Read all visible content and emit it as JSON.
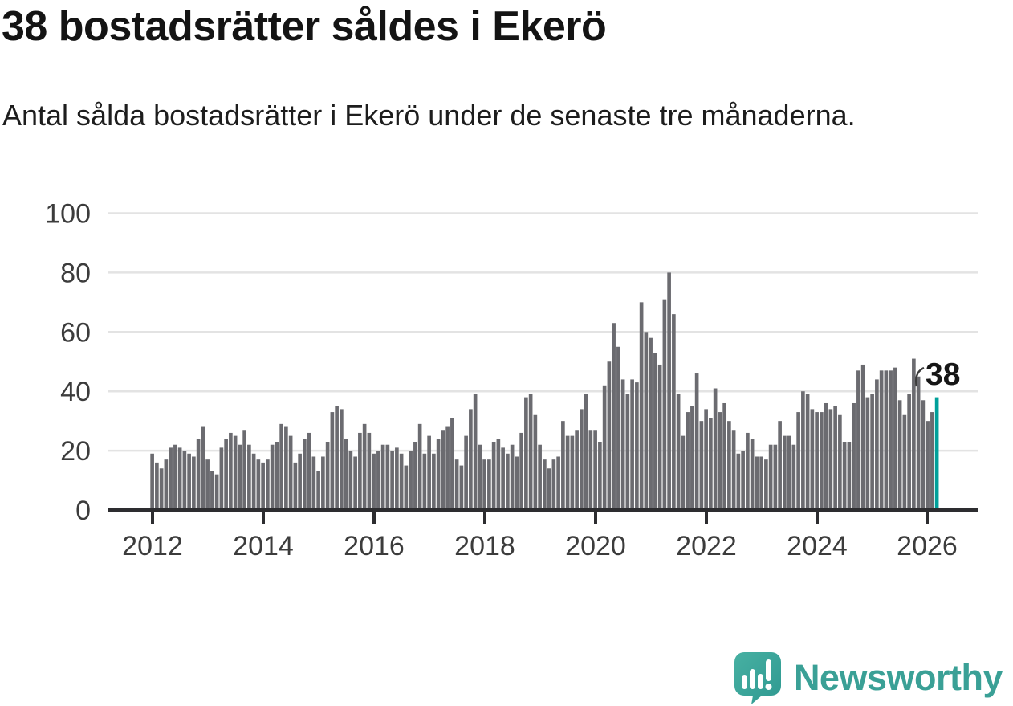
{
  "header": {
    "title": "38 bostadsrätter såldes i Ekerö",
    "subtitle": "Antal sålda bostadsrätter i Ekerö under de senaste tre månaderna."
  },
  "branding": {
    "logo_text": "Newsworthy",
    "logo_color": "#3aa096",
    "logo_mark_color": "#38a89b"
  },
  "colors": {
    "bar": "#6b6b70",
    "highlight": "#00a09a",
    "gridline": "#e3e3e3",
    "axis": "#2d2d30",
    "axis_label": "#3c3c3c",
    "annotation_text": "#161616"
  },
  "chart_data": {
    "type": "bar",
    "title": "38 bostadsrätter såldes i Ekerö",
    "subtitle": "Antal sålda bostadsrätter i Ekerö under de senaste tre månaderna.",
    "unit": "sålda bostadsrätter per 3-månadersperiod",
    "x_start": "2012-01",
    "frequency": "monthly",
    "x_tick_labels": [
      "2012",
      "2014",
      "2016",
      "2018",
      "2020",
      "2022",
      "2024",
      "2026"
    ],
    "y_ticks": [
      0,
      20,
      40,
      60,
      80,
      100
    ],
    "ylim": [
      0,
      100
    ],
    "grid": true,
    "legend": "none",
    "annotation_label": "38",
    "highlighted_last_value": 38,
    "values": [
      19,
      16,
      14,
      17,
      21,
      22,
      21,
      20,
      19,
      18,
      24,
      28,
      17,
      13,
      12,
      21,
      24,
      26,
      25,
      22,
      27,
      22,
      19,
      17,
      16,
      17,
      22,
      23,
      29,
      28,
      25,
      16,
      19,
      24,
      26,
      18,
      13,
      18,
      23,
      33,
      35,
      34,
      24,
      20,
      18,
      26,
      29,
      26,
      19,
      20,
      22,
      22,
      20,
      21,
      19,
      15,
      20,
      23,
      29,
      19,
      25,
      19,
      24,
      27,
      28,
      31,
      17,
      15,
      25,
      34,
      39,
      22,
      17,
      17,
      23,
      24,
      21,
      19,
      22,
      18,
      26,
      38,
      39,
      32,
      22,
      17,
      14,
      17,
      18,
      30,
      25,
      25,
      27,
      34,
      39,
      27,
      27,
      23,
      42,
      50,
      63,
      55,
      44,
      39,
      44,
      43,
      70,
      60,
      58,
      53,
      49,
      71,
      80,
      66,
      39,
      25,
      33,
      35,
      46,
      30,
      34,
      31,
      41,
      33,
      36,
      30,
      27,
      19,
      20,
      26,
      24,
      18,
      18,
      17,
      22,
      22,
      30,
      25,
      25,
      22,
      33,
      40,
      39,
      34,
      33,
      33,
      36,
      34,
      35,
      32,
      23,
      23,
      36,
      47,
      49,
      38,
      39,
      44,
      47,
      47,
      47,
      48,
      37,
      32,
      39,
      51,
      45,
      37,
      30,
      33,
      38
    ]
  }
}
